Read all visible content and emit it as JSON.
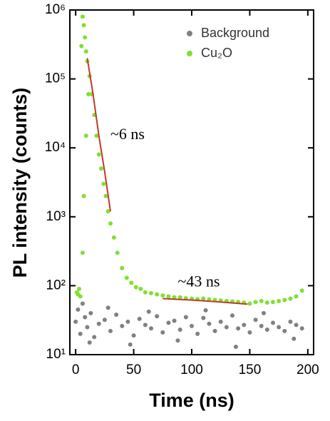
{
  "chart_data": {
    "type": "scatter",
    "xlabel": "Time (ns)",
    "ylabel": "PL intensity (counts)",
    "xlim": [
      -5,
      205
    ],
    "ylim": [
      10,
      1000000
    ],
    "yscale": "log",
    "xticks": [
      0,
      50,
      100,
      150,
      200
    ],
    "yticks": [
      {
        "value": 10,
        "label": "10¹"
      },
      {
        "value": 100,
        "label": "10²"
      },
      {
        "value": 1000,
        "label": "10³"
      },
      {
        "value": 10000,
        "label": "10⁴"
      },
      {
        "value": 100000,
        "label": "10⁵"
      },
      {
        "value": 1000000,
        "label": "10⁶"
      }
    ],
    "legend": "upper right",
    "series": [
      {
        "name": "Background",
        "color": "#808080",
        "x": [
          0,
          2,
          4,
          6,
          8,
          10,
          13,
          16,
          20,
          25,
          30,
          35,
          40,
          45,
          50,
          55,
          60,
          65,
          70,
          75,
          80,
          85,
          90,
          95,
          100,
          105,
          110,
          115,
          120,
          125,
          130,
          135,
          140,
          145,
          150,
          155,
          160,
          165,
          170,
          175,
          180,
          185,
          190,
          195,
          12,
          28,
          47,
          63,
          88,
          112,
          138,
          162,
          188
        ],
        "values": [
          30,
          45,
          20,
          55,
          35,
          25,
          40,
          18,
          28,
          32,
          22,
          38,
          26,
          30,
          19,
          33,
          27,
          24,
          36,
          21,
          29,
          31,
          23,
          35,
          26,
          20,
          34,
          28,
          22,
          30,
          25,
          37,
          24,
          27,
          21,
          32,
          26,
          23,
          29,
          25,
          22,
          30,
          27,
          24,
          15,
          48,
          14,
          42,
          16,
          44,
          13,
          40,
          17
        ]
      },
      {
        "name": "Cu₂O",
        "color": "#80e030",
        "x": [
          1,
          2,
          3,
          4,
          5,
          6,
          7,
          8,
          9,
          10,
          12,
          14,
          16,
          18,
          20,
          22,
          24,
          26,
          28,
          30,
          33,
          36,
          40,
          44,
          48,
          52,
          56,
          60,
          65,
          70,
          75,
          80,
          85,
          90,
          95,
          100,
          105,
          110,
          115,
          120,
          125,
          130,
          135,
          140,
          145,
          150,
          155,
          160,
          165,
          170,
          175,
          180,
          185,
          190,
          195,
          6,
          7,
          9,
          11
        ],
        "values": [
          80,
          75,
          90,
          70,
          300000,
          800000,
          600000,
          400000,
          250000,
          180000,
          110000,
          60000,
          30000,
          15000,
          8000,
          5000,
          3000,
          2000,
          1200,
          800,
          500,
          300,
          180,
          130,
          110,
          95,
          90,
          80,
          78,
          75,
          72,
          70,
          68,
          68,
          66,
          65,
          64,
          65,
          63,
          62,
          61,
          60,
          59,
          58,
          57,
          55,
          58,
          60,
          57,
          58,
          60,
          62,
          65,
          70,
          85,
          300,
          2000,
          15000,
          60000
        ]
      }
    ],
    "fits": [
      {
        "color": "#c0392b",
        "x": [
          10,
          15,
          20,
          25,
          30
        ],
        "values": [
          200000,
          60000,
          15000,
          4500,
          1200
        ]
      },
      {
        "color": "#c0392b",
        "x": [
          75,
          100,
          125,
          148
        ],
        "values": [
          65,
          62,
          58,
          54
        ]
      }
    ],
    "annotations": [
      {
        "text": "~6 ns",
        "x": 30,
        "y": 15000
      },
      {
        "text": "~43 ns",
        "x": 88,
        "y": 110
      }
    ]
  }
}
